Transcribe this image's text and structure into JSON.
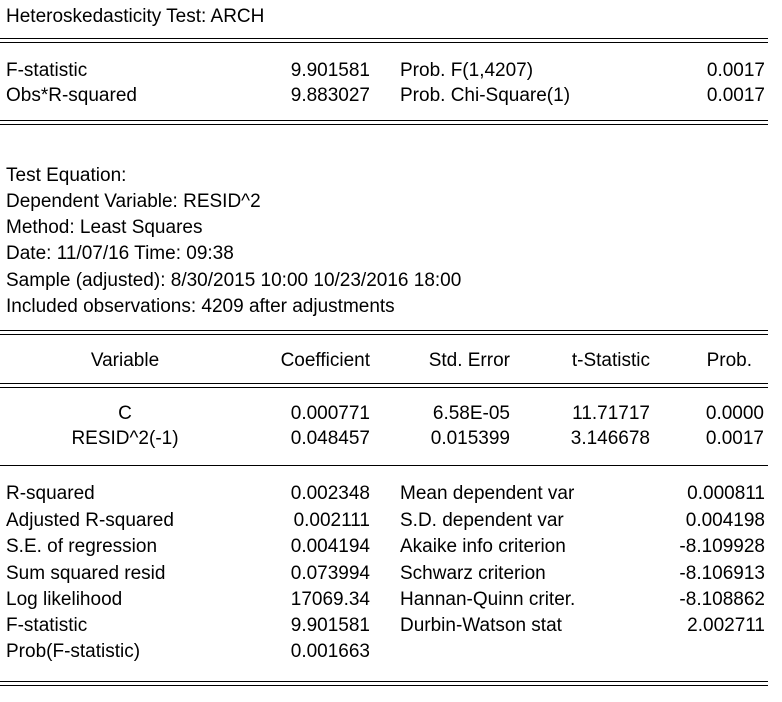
{
  "title": "Heteroskedasticity Test: ARCH",
  "top_stats": [
    {
      "label": "F-statistic",
      "value": "9.901581",
      "plabel": "Prob. F(1,4207)",
      "pvalue": "0.0017"
    },
    {
      "label": "Obs*R-squared",
      "value": "9.883027",
      "plabel": "Prob. Chi-Square(1)",
      "pvalue": "0.0017"
    }
  ],
  "info": [
    "Test Equation:",
    "Dependent Variable: RESID^2",
    "Method: Least Squares",
    "Date: 11/07/16   Time: 09:38",
    "Sample (adjusted): 8/30/2015 10:00 10/23/2016 18:00",
    "Included observations: 4209 after adjustments"
  ],
  "coef_headers": [
    "Variable",
    "Coefficient",
    "Std. Error",
    "t-Statistic",
    "Prob."
  ],
  "coef_rows": [
    [
      "C",
      "0.000771",
      "6.58E-05",
      "11.71717",
      "0.0000"
    ],
    [
      "RESID^2(-1)",
      "0.048457",
      "0.015399",
      "3.146678",
      "0.0017"
    ]
  ],
  "summary_left": [
    {
      "label": "R-squared",
      "value": "0.002348"
    },
    {
      "label": "Adjusted R-squared",
      "value": "0.002111"
    },
    {
      "label": "S.E. of regression",
      "value": "0.004194"
    },
    {
      "label": "Sum squared resid",
      "value": "0.073994"
    },
    {
      "label": "Log likelihood",
      "value": "17069.34"
    },
    {
      "label": "F-statistic",
      "value": "9.901581"
    },
    {
      "label": "Prob(F-statistic)",
      "value": "0.001663"
    }
  ],
  "summary_right": [
    {
      "label": "Mean dependent var",
      "value": "0.000811"
    },
    {
      "label": "S.D. dependent var",
      "value": "0.004198"
    },
    {
      "label": "Akaike info criterion",
      "value": "-8.109928"
    },
    {
      "label": "Schwarz criterion",
      "value": "-8.106913"
    },
    {
      "label": "Hannan-Quinn criter.",
      "value": "-8.108862"
    },
    {
      "label": "Durbin-Watson stat",
      "value": "2.002711"
    }
  ]
}
